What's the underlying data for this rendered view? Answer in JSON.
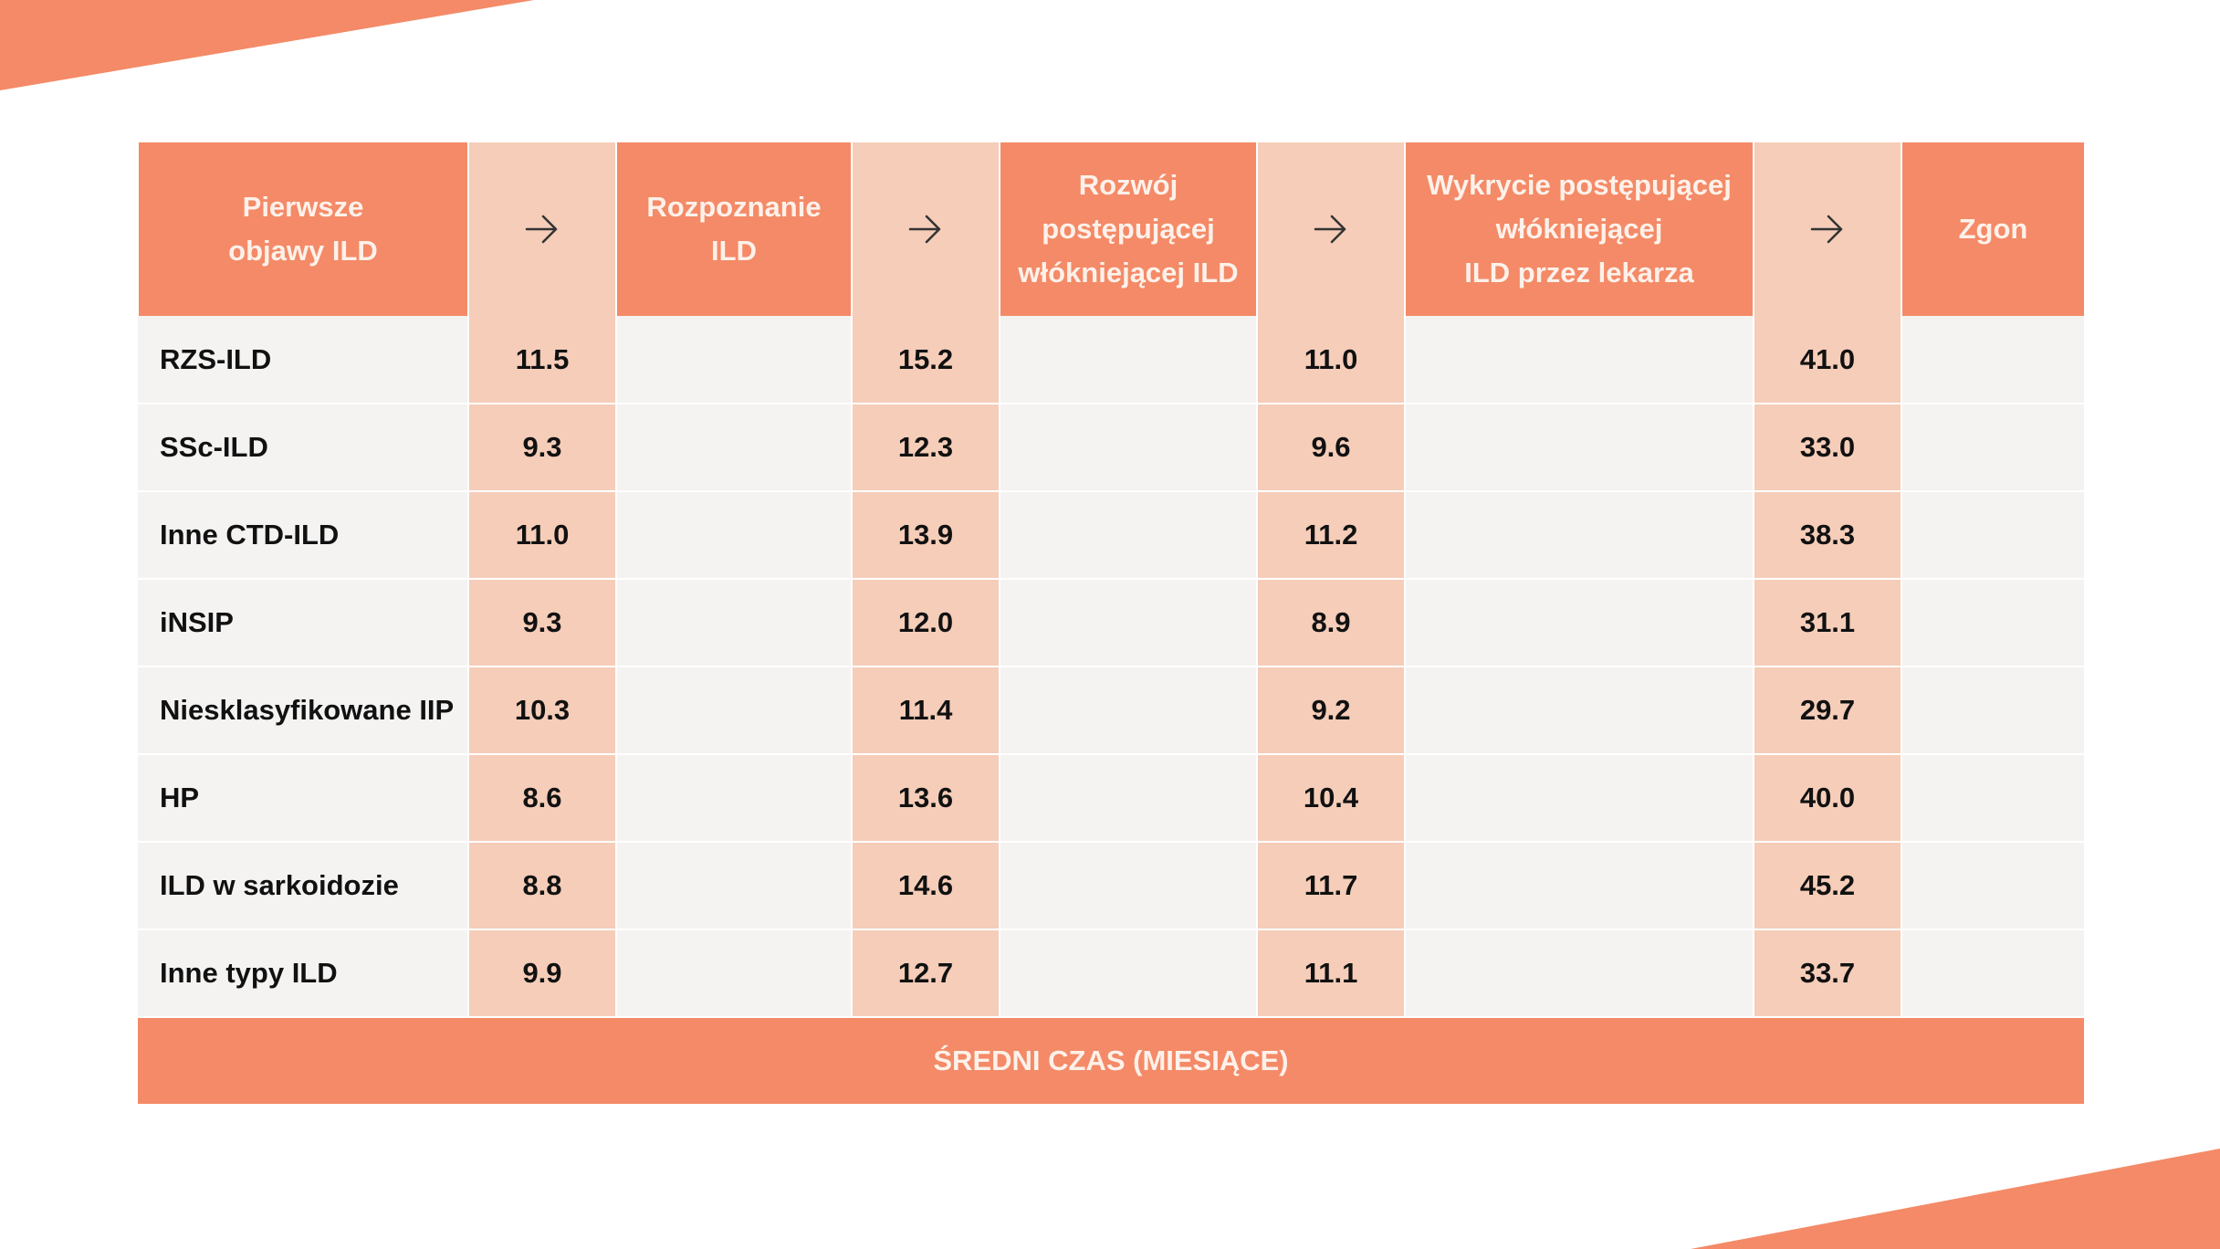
{
  "colors": {
    "accent": "#f48a67",
    "accent_light": "#f5cdb9",
    "row_bg": "#f4f3f2",
    "header_text": "#fdf1ea"
  },
  "header": {
    "stages": [
      "Pierwsze\nobjawy ILD",
      "Rozpoznanie\nILD",
      "Rozwój\npostępującej\nwłókniejącej ILD",
      "Wykrycie postępującej\nwłókniejącej\nILD przez lekarza",
      "Zgon"
    ],
    "arrow_icon": "arrow-right-icon"
  },
  "rows": [
    {
      "name": "RZS-ILD",
      "values": [
        "11.5",
        "15.2",
        "11.0",
        "41.0"
      ]
    },
    {
      "name": "SSc-ILD",
      "values": [
        "9.3",
        "12.3",
        "9.6",
        "33.0"
      ]
    },
    {
      "name": "Inne CTD-ILD",
      "values": [
        "11.0",
        "13.9",
        "11.2",
        "38.3"
      ]
    },
    {
      "name": "iNSIP",
      "values": [
        "9.3",
        "12.0",
        "8.9",
        "31.1"
      ]
    },
    {
      "name": "Niesklasyfikowane IIP",
      "values": [
        "10.3",
        "11.4",
        "9.2",
        "29.7"
      ]
    },
    {
      "name": "HP",
      "values": [
        "8.6",
        "13.6",
        "10.4",
        "40.0"
      ]
    },
    {
      "name": "ILD w sarkoidozie",
      "values": [
        "8.8",
        "14.6",
        "11.7",
        "45.2"
      ]
    },
    {
      "name": "Inne typy ILD",
      "values": [
        "9.9",
        "12.7",
        "11.1",
        "33.7"
      ]
    }
  ],
  "footer": {
    "label": "ŚREDNI CZAS (MIESIĄCE)"
  }
}
